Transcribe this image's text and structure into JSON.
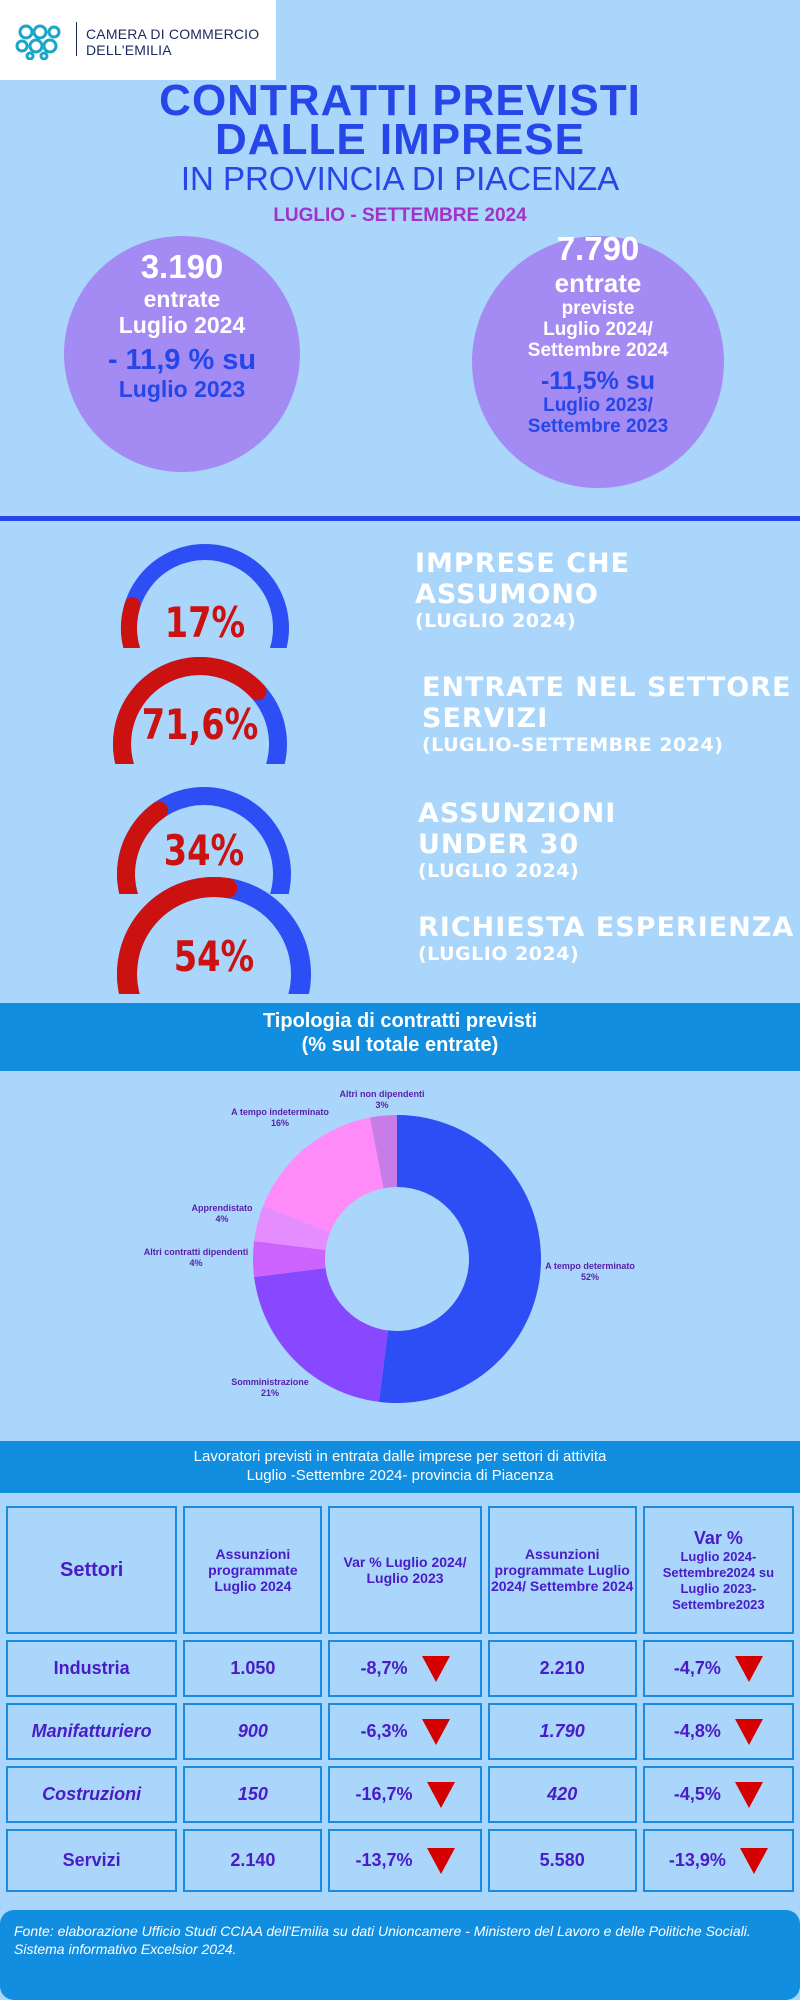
{
  "header": {
    "org_line1": "CAMERA DI COMMERCIO",
    "org_line2": "DELL'EMILIA",
    "title_line1": "CONTRATTI PREVISTI",
    "title_line2": "DALLE IMPRESE",
    "subtitle": "IN PROVINCIA DI PIACENZA",
    "period": "LUGLIO - SETTEMBRE 2024"
  },
  "circle_left": {
    "value": "3.190",
    "line1": "entrate",
    "line2": "Luglio 2024",
    "change": "- 11,9 % su",
    "change_ref": "Luglio  2023"
  },
  "circle_right": {
    "value": "7.790",
    "line1": "entrate",
    "line2": "previste",
    "line3": "Luglio 2024/",
    "line4": "Settembre 2024",
    "change": "-11,5% su",
    "change_ref1": "Luglio 2023/",
    "change_ref2": "Settembre 2023"
  },
  "gauges": [
    {
      "pct_text": "17%",
      "value": 17,
      "label1": "IMPRESE CHE",
      "label2": "ASSUMONO",
      "sub": "(LUGLIO 2024)"
    },
    {
      "pct_text": "71,6%",
      "value": 71.6,
      "label1": "ENTRATE NEL SETTORE",
      "label2": "SERVIZI",
      "sub": "(LUGLIO-SETTEMBRE 2024)"
    },
    {
      "pct_text": "34%",
      "value": 34,
      "label1": "ASSUNZIONI",
      "label2": "UNDER 30",
      "sub": "(LUGLIO 2024)"
    },
    {
      "pct_text": "54%",
      "value": 54,
      "label1": "RICHIESTA ESPERIENZA",
      "label2": "",
      "sub": "(LUGLIO 2024)"
    }
  ],
  "donut_section": {
    "title_line1": "Tipologia di contratti previsti",
    "title_line2": "(% sul totale entrate)"
  },
  "chart_data": {
    "type": "pie",
    "title": "Tipologia di contratti previsti",
    "subtitle": "(% sul totale entrate)",
    "categories": [
      "A tempo determinato",
      "Somministrazione",
      "Altri contratti dipendenti",
      "Apprendistato",
      "A tempo indeterminato",
      "Altri non dipendenti"
    ],
    "values": [
      52,
      21,
      4,
      4,
      16,
      3
    ],
    "value_labels": [
      "52%",
      "21%",
      "4%",
      "4%",
      "16%",
      "3%"
    ],
    "colors": [
      "#2d4ef5",
      "#8848ff",
      "#cd63ff",
      "#e58cff",
      "#ff8bf9",
      "#c77ce8"
    ]
  },
  "table_section": {
    "title_line1": "Lavoratori previsti in entrata dalle imprese per settori di attivita",
    "title_line2": "Luglio -Settembre 2024- provincia di Piacenza"
  },
  "table": {
    "headers": {
      "col1": "Settori",
      "col2": "Assunzioni programmate Luglio  2024",
      "col3": "Var % Luglio  2024/ Luglio  2023",
      "col4": "Assunzioni programmate Luglio  2024/ Settembre 2024",
      "col5_title": "Var %",
      "col5_rest": "Luglio 2024- Settembre2024 su Luglio 2023- Settembre2023"
    },
    "rows": [
      {
        "settore": "Industria",
        "ass_lug": "1.050",
        "var_lug": "-8,7%",
        "ass_trim": "2.210",
        "var_trim": "-4,7%"
      },
      {
        "settore": "Manifatturiero",
        "ass_lug": "900",
        "var_lug": "-6,3%",
        "ass_trim": "1.790",
        "var_trim": "-4,8%"
      },
      {
        "settore": "Costruzioni",
        "ass_lug": "150",
        "var_lug": "-16,7%",
        "ass_trim": "420",
        "var_trim": "-4,5%"
      },
      {
        "settore": "Servizi",
        "ass_lug": "2.140",
        "var_lug": "-13,7%",
        "ass_trim": "5.580",
        "var_trim": "-13,9%"
      }
    ]
  },
  "footer": {
    "source": "Fonte: elaborazione Ufficio Studi CCIAA dell'Emilia su dati Unioncamere - Ministero del Lavoro e delle Politiche Sociali. Sistema informativo Excelsior 2024."
  },
  "colors": {
    "background": "#a9d6fa",
    "title_blue": "#2546e8",
    "period_purple": "#a033c9",
    "circle_purple": "#a48bf3",
    "gauge_red": "#cc1111",
    "gauge_blue": "#2d4ef5",
    "band_blue": "#118ee0"
  }
}
